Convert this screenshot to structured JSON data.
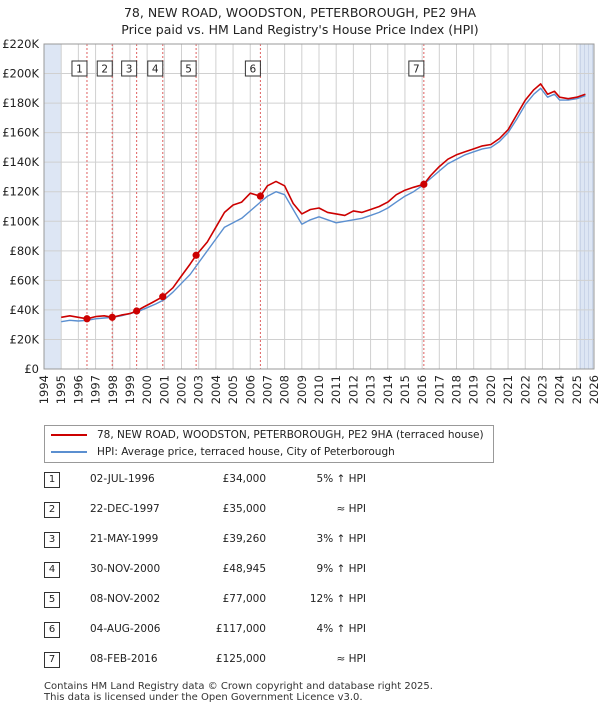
{
  "title_line1": "78, NEW ROAD, WOODSTON, PETERBOROUGH, PE2 9HA",
  "title_line2": "Price paid vs. HM Land Registry's House Price Index (HPI)",
  "colors": {
    "property": "#cc0000",
    "hpi": "#5b8fd0",
    "shade": "#dde6f4",
    "grid": "#d0d0d0"
  },
  "legend": {
    "property": "78, NEW ROAD, WOODSTON, PETERBOROUGH, PE2 9HA (terraced house)",
    "hpi": "HPI: Average price, terraced house, City of Peterborough"
  },
  "transactions": [
    {
      "num": "1",
      "date": "02-JUL-1996",
      "price": "£34,000",
      "hpi": "5% ↑ HPI"
    },
    {
      "num": "2",
      "date": "22-DEC-1997",
      "price": "£35,000",
      "hpi": "≈ HPI"
    },
    {
      "num": "3",
      "date": "21-MAY-1999",
      "price": "£39,260",
      "hpi": "3% ↑ HPI"
    },
    {
      "num": "4",
      "date": "30-NOV-2000",
      "price": "£48,945",
      "hpi": "9% ↑ HPI"
    },
    {
      "num": "5",
      "date": "08-NOV-2002",
      "price": "£77,000",
      "hpi": "12% ↑ HPI"
    },
    {
      "num": "6",
      "date": "04-AUG-2006",
      "price": "£117,000",
      "hpi": "4% ↑ HPI"
    },
    {
      "num": "7",
      "date": "08-FEB-2016",
      "price": "£125,000",
      "hpi": "≈ HPI"
    }
  ],
  "footer_line1": "Contains HM Land Registry data © Crown copyright and database right 2025.",
  "footer_line2": "This data is licensed under the Open Government Licence v3.0.",
  "chart_data": {
    "type": "line",
    "title": "78, NEW ROAD, WOODSTON, PETERBOROUGH, PE2 9HA — Price paid vs. HM Land Registry's House Price Index (HPI)",
    "xlabel": "",
    "ylabel": "",
    "xlim": [
      1994,
      2026
    ],
    "ylim": [
      0,
      220000
    ],
    "x_ticks": [
      1994,
      1995,
      1996,
      1997,
      1998,
      1999,
      2000,
      2001,
      2002,
      2003,
      2004,
      2005,
      2006,
      2007,
      2008,
      2009,
      2010,
      2011,
      2012,
      2013,
      2014,
      2015,
      2016,
      2017,
      2018,
      2019,
      2020,
      2021,
      2022,
      2023,
      2024,
      2025,
      2026
    ],
    "y_ticks": [
      0,
      20000,
      40000,
      60000,
      80000,
      100000,
      120000,
      140000,
      160000,
      180000,
      200000,
      220000
    ],
    "y_tick_labels": [
      "£0",
      "£20K",
      "£40K",
      "£60K",
      "£80K",
      "£100K",
      "£120K",
      "£140K",
      "£160K",
      "£180K",
      "£200K",
      "£220K"
    ],
    "shaded_ranges": [
      [
        1994,
        1995.0
      ],
      [
        2025.1,
        2026
      ]
    ],
    "sales": [
      {
        "label": "1",
        "x": 1996.5,
        "y": 34000
      },
      {
        "label": "2",
        "x": 1997.97,
        "y": 35000
      },
      {
        "label": "3",
        "x": 1999.39,
        "y": 39260
      },
      {
        "label": "4",
        "x": 2000.91,
        "y": 48945
      },
      {
        "label": "5",
        "x": 2002.85,
        "y": 77000
      },
      {
        "label": "6",
        "x": 2006.59,
        "y": 117000
      },
      {
        "label": "7",
        "x": 2016.1,
        "y": 125000
      }
    ],
    "series": [
      {
        "name": "78, NEW ROAD, WOODSTON, PETERBOROUGH, PE2 9HA (terraced house)",
        "x": [
          1995.0,
          1995.5,
          1996.0,
          1996.5,
          1997.0,
          1997.5,
          1997.97,
          1998.5,
          1999.0,
          1999.39,
          1999.8,
          2000.3,
          2000.91,
          2001.5,
          2002.0,
          2002.5,
          2002.85,
          2003.5,
          2004.0,
          2004.5,
          2005.0,
          2005.5,
          2006.0,
          2006.59,
          2007.0,
          2007.5,
          2008.0,
          2008.5,
          2009.0,
          2009.5,
          2010.0,
          2010.5,
          2011.0,
          2011.5,
          2012.0,
          2012.5,
          2013.0,
          2013.5,
          2014.0,
          2014.5,
          2015.0,
          2015.5,
          2016.1,
          2016.5,
          2017.0,
          2017.5,
          2018.0,
          2018.5,
          2019.0,
          2019.5,
          2020.0,
          2020.5,
          2021.0,
          2021.5,
          2022.0,
          2022.5,
          2022.9,
          2023.3,
          2023.7,
          2024.0,
          2024.5,
          2025.0,
          2025.5
        ],
        "y": [
          35000,
          36000,
          35000,
          34000,
          35500,
          36000,
          35000,
          36500,
          37500,
          39260,
          42000,
          45000,
          48945,
          55000,
          63000,
          71000,
          77000,
          86000,
          96000,
          106000,
          111000,
          113000,
          119000,
          117000,
          124000,
          127000,
          124000,
          112000,
          105000,
          108000,
          109000,
          106000,
          105000,
          104000,
          107000,
          106000,
          108000,
          110000,
          113000,
          118000,
          121000,
          123000,
          125000,
          131000,
          137000,
          142000,
          145000,
          147000,
          149000,
          151000,
          152000,
          156000,
          162000,
          172000,
          182000,
          189000,
          193000,
          186000,
          188000,
          184000,
          183000,
          184000,
          186000
        ]
      },
      {
        "name": "HPI: Average price, terraced house, City of Peterborough",
        "x": [
          1995.0,
          1995.5,
          1996.0,
          1996.5,
          1997.0,
          1997.5,
          1998.0,
          1998.5,
          1999.0,
          1999.5,
          2000.0,
          2000.5,
          2001.0,
          2001.5,
          2002.0,
          2002.5,
          2003.0,
          2003.5,
          2004.0,
          2004.5,
          2005.0,
          2005.5,
          2006.0,
          2006.5,
          2007.0,
          2007.5,
          2008.0,
          2008.5,
          2009.0,
          2009.5,
          2010.0,
          2010.5,
          2011.0,
          2011.5,
          2012.0,
          2012.5,
          2013.0,
          2013.5,
          2014.0,
          2014.5,
          2015.0,
          2015.5,
          2016.0,
          2016.5,
          2017.0,
          2017.5,
          2018.0,
          2018.5,
          2019.0,
          2019.5,
          2020.0,
          2020.5,
          2021.0,
          2021.5,
          2022.0,
          2022.5,
          2022.9,
          2023.3,
          2023.7,
          2024.0,
          2024.5,
          2025.0,
          2025.5
        ],
        "y": [
          32000,
          33000,
          32500,
          33000,
          34000,
          34500,
          35000,
          36000,
          37500,
          39000,
          41500,
          44000,
          47000,
          52000,
          58000,
          64000,
          72000,
          80000,
          88000,
          96000,
          99000,
          102000,
          107000,
          112000,
          117000,
          120000,
          118000,
          108000,
          98000,
          101000,
          103000,
          101000,
          99000,
          100000,
          101000,
          102000,
          104000,
          106000,
          109000,
          113000,
          117000,
          120000,
          124000,
          129000,
          134000,
          139000,
          142000,
          145000,
          147000,
          149000,
          150000,
          154000,
          160000,
          169000,
          179000,
          186000,
          190000,
          184000,
          186000,
          182000,
          182000,
          183000,
          185000
        ]
      }
    ]
  }
}
